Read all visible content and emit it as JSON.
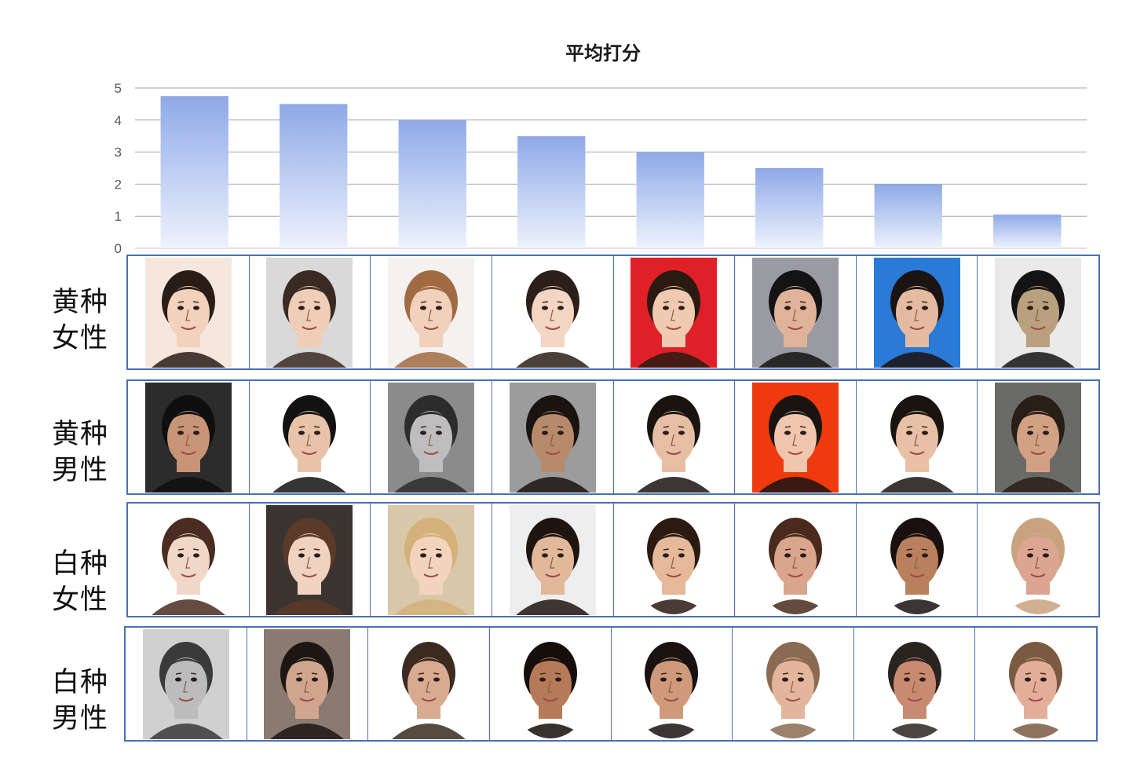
{
  "chart_data": {
    "type": "bar",
    "title": "平均打分",
    "categories": [
      "",
      "",
      "",
      "",
      "",
      "",
      "",
      ""
    ],
    "values": [
      4.75,
      4.5,
      4.0,
      3.5,
      3.0,
      2.5,
      2.0,
      1.05
    ],
    "ylim": [
      0,
      5
    ],
    "yticks": [
      "0",
      "1",
      "2",
      "3",
      "4",
      "5"
    ],
    "grid": true,
    "bar_colors": [
      "#8ea9e8",
      "#eef2fc"
    ]
  },
  "rows": [
    {
      "label": "黄种\n女性",
      "photos": [
        {
          "icon": "portrait-icon",
          "bg": "#f5e6de",
          "skin": "#f2d2bd",
          "hair": "#2a1c16",
          "shape": "rect"
        },
        {
          "icon": "portrait-icon",
          "bg": "#d9d9d9",
          "skin": "#f0cdb6",
          "hair": "#3a2a24",
          "shape": "rect"
        },
        {
          "icon": "portrait-icon",
          "bg": "#f4f1ef",
          "skin": "#f1d1bb",
          "hair": "#a06b43",
          "shape": "rect"
        },
        {
          "icon": "portrait-icon",
          "bg": "#ffffff",
          "skin": "#f2d5c2",
          "hair": "#2c1e18",
          "shape": "rect"
        },
        {
          "icon": "portrait-icon",
          "bg": "#e02028",
          "skin": "#efcab0",
          "hair": "#2a1a12",
          "shape": "rect"
        },
        {
          "icon": "portrait-icon",
          "bg": "#9a9aa2",
          "skin": "#dfb39a",
          "hair": "#141414",
          "shape": "rect"
        },
        {
          "icon": "portrait-icon",
          "bg": "#2a7ad8",
          "skin": "#e4bba0",
          "hair": "#1a1412",
          "shape": "rect"
        },
        {
          "icon": "portrait-icon",
          "bg": "#e9e9e9",
          "skin": "#b9a07e",
          "hair": "#141414",
          "shape": "rect"
        }
      ]
    },
    {
      "label": "黄种\n男性",
      "photos": [
        {
          "icon": "portrait-icon",
          "bg": "#2c2c2c",
          "skin": "#c79477",
          "hair": "#0f0f0f",
          "shape": "rect"
        },
        {
          "icon": "portrait-icon",
          "bg": "#ffffff",
          "skin": "#e8c3aa",
          "hair": "#121212",
          "shape": "rect"
        },
        {
          "icon": "portrait-icon",
          "bg": "#8b8b8b",
          "skin": "#bdbdbd",
          "hair": "#2c2c2c",
          "shape": "rect"
        },
        {
          "icon": "portrait-icon",
          "bg": "#9c9c9c",
          "skin": "#b88a6c",
          "hair": "#1a1410",
          "shape": "rect"
        },
        {
          "icon": "portrait-icon",
          "bg": "#ffffff",
          "skin": "#e6bea4",
          "hair": "#1a1410",
          "shape": "rect"
        },
        {
          "icon": "portrait-icon",
          "bg": "#ee3a0e",
          "skin": "#f0c7ae",
          "hair": "#1a1410",
          "shape": "rect"
        },
        {
          "icon": "portrait-icon",
          "bg": "#ffffff",
          "skin": "#e8c0a5",
          "hair": "#1a1410",
          "shape": "rect"
        },
        {
          "icon": "portrait-icon",
          "bg": "#6a6a66",
          "skin": "#d2a184",
          "hair": "#2a1e18",
          "shape": "rect"
        }
      ]
    },
    {
      "label": "白种\n女性",
      "photos": [
        {
          "icon": "portrait-icon",
          "bg": "#ffffff",
          "skin": "#f1d7c8",
          "hair": "#4a2c20",
          "shape": "rect"
        },
        {
          "icon": "portrait-icon",
          "bg": "#3b3430",
          "skin": "#efd2c0",
          "hair": "#5a3a28",
          "shape": "rect"
        },
        {
          "icon": "portrait-icon",
          "bg": "#d8c7a8",
          "skin": "#f2d4be",
          "hair": "#d4b07a",
          "shape": "rect"
        },
        {
          "icon": "portrait-icon",
          "bg": "#eeeeee",
          "skin": "#e2b89a",
          "hair": "#1e1410",
          "shape": "rect"
        },
        {
          "icon": "portrait-icon",
          "bg": "#ffffff",
          "skin": "#e6b89a",
          "hair": "#2a1a12",
          "shape": "oval"
        },
        {
          "icon": "portrait-icon",
          "bg": "#ffffff",
          "skin": "#d9a58c",
          "hair": "#4a2a1c",
          "shape": "oval"
        },
        {
          "icon": "portrait-icon",
          "bg": "#ffffff",
          "skin": "#b9805e",
          "hair": "#1a1010",
          "shape": "oval"
        },
        {
          "icon": "portrait-icon",
          "bg": "#ffffff",
          "skin": "#dba592",
          "hair": "#c9a27e",
          "shape": "oval"
        }
      ]
    },
    {
      "label": "白种\n男性",
      "photos": [
        {
          "icon": "portrait-icon",
          "bg": "#d0d0d0",
          "skin": "#bcbcbc",
          "hair": "#3a3a3a",
          "shape": "rect"
        },
        {
          "icon": "portrait-icon",
          "bg": "#8a7a72",
          "skin": "#cfa58e",
          "hair": "#1e1612",
          "shape": "rect"
        },
        {
          "icon": "portrait-icon",
          "bg": "#ffffff",
          "skin": "#d8ab90",
          "hair": "#3a2a20",
          "shape": "rect"
        },
        {
          "icon": "portrait-icon",
          "bg": "#ffffff",
          "skin": "#b57a58",
          "hair": "#150e0a",
          "shape": "oval"
        },
        {
          "icon": "portrait-icon",
          "bg": "#ffffff",
          "skin": "#cf9a7c",
          "hair": "#1a1210",
          "shape": "oval"
        },
        {
          "icon": "portrait-icon",
          "bg": "#ffffff",
          "skin": "#e3b59c",
          "hair": "#8a6a50",
          "shape": "oval"
        },
        {
          "icon": "portrait-icon",
          "bg": "#ffffff",
          "skin": "#c98a72",
          "hair": "#2a2420",
          "shape": "oval"
        },
        {
          "icon": "portrait-icon",
          "bg": "#ffffff",
          "skin": "#e2ae9a",
          "hair": "#7a5a40",
          "shape": "oval"
        }
      ]
    }
  ]
}
